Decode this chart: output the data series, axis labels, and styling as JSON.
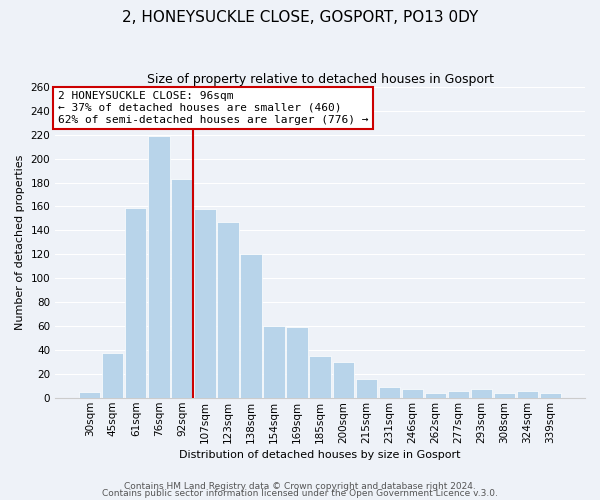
{
  "title": "2, HONEYSUCKLE CLOSE, GOSPORT, PO13 0DY",
  "subtitle": "Size of property relative to detached houses in Gosport",
  "xlabel": "Distribution of detached houses by size in Gosport",
  "ylabel": "Number of detached properties",
  "categories": [
    "30sqm",
    "45sqm",
    "61sqm",
    "76sqm",
    "92sqm",
    "107sqm",
    "123sqm",
    "138sqm",
    "154sqm",
    "169sqm",
    "185sqm",
    "200sqm",
    "215sqm",
    "231sqm",
    "246sqm",
    "262sqm",
    "277sqm",
    "293sqm",
    "308sqm",
    "324sqm",
    "339sqm"
  ],
  "values": [
    5,
    38,
    159,
    219,
    183,
    158,
    147,
    120,
    60,
    59,
    35,
    30,
    16,
    9,
    8,
    4,
    6,
    8,
    4,
    6,
    4
  ],
  "bar_color": "#b8d4ea",
  "bar_edge_color": "#ffffff",
  "red_line_x": 4.5,
  "annotation_title": "2 HONEYSUCKLE CLOSE: 96sqm",
  "annotation_line1": "← 37% of detached houses are smaller (460)",
  "annotation_line2": "62% of semi-detached houses are larger (776) →",
  "annotation_box_color": "#ffffff",
  "annotation_box_edge": "#cc0000",
  "red_line_color": "#cc0000",
  "ylim": [
    0,
    260
  ],
  "yticks": [
    0,
    20,
    40,
    60,
    80,
    100,
    120,
    140,
    160,
    180,
    200,
    220,
    240,
    260
  ],
  "footer1": "Contains HM Land Registry data © Crown copyright and database right 2024.",
  "footer2": "Contains public sector information licensed under the Open Government Licence v.3.0.",
  "bg_color": "#eef2f8",
  "plot_bg_color": "#eef2f8",
  "grid_color": "#ffffff",
  "title_fontsize": 11,
  "subtitle_fontsize": 9,
  "axis_label_fontsize": 8,
  "tick_fontsize": 7.5,
  "annotation_fontsize": 8,
  "footer_fontsize": 6.5
}
